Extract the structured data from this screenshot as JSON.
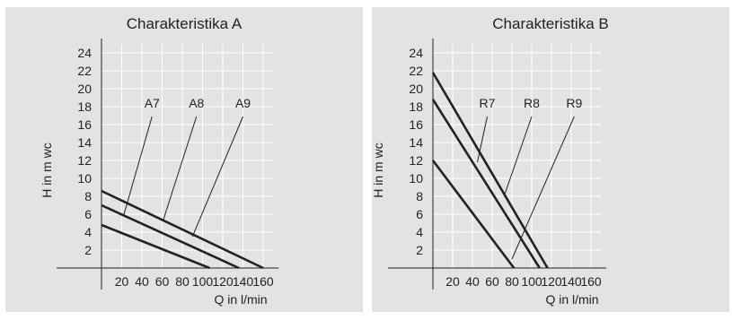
{
  "colors": {
    "panel_background": "#e3e3e3",
    "gridline": "#ffffff",
    "line": "#222222",
    "text": "#222222"
  },
  "chart_data": [
    {
      "type": "line",
      "title": "Charakteristika A",
      "xlabel": "Q in l/min",
      "ylabel": "H in m wc",
      "xlim": [
        0,
        170
      ],
      "ylim": [
        0,
        25
      ],
      "xticks": [
        20,
        40,
        60,
        80,
        100,
        120,
        140,
        160
      ],
      "yticks": [
        2,
        4,
        6,
        8,
        10,
        12,
        14,
        16,
        18,
        20,
        22,
        24
      ],
      "grid": true,
      "series": [
        {
          "name": "A7",
          "x": [
            0,
            107
          ],
          "y": [
            4.8,
            0
          ],
          "label_at": [
            50,
            17.5
          ],
          "leader_target": [
            22,
            5.9
          ]
        },
        {
          "name": "A8",
          "x": [
            0,
            136
          ],
          "y": [
            7,
            0
          ],
          "label_at": [
            94,
            17.5
          ],
          "leader_target": [
            61,
            5.3
          ]
        },
        {
          "name": "A9",
          "x": [
            0,
            160
          ],
          "y": [
            8.6,
            0
          ],
          "label_at": [
            140,
            17.5
          ],
          "leader_target": [
            90,
            3.5
          ]
        }
      ]
    },
    {
      "type": "line",
      "title": "Charakteristika B",
      "xlabel": "Q in l/min",
      "ylabel": "H in m wc",
      "xlim": [
        0,
        170
      ],
      "ylim": [
        0,
        25
      ],
      "xticks": [
        20,
        40,
        60,
        80,
        100,
        120,
        140,
        160
      ],
      "yticks": [
        2,
        4,
        6,
        8,
        10,
        12,
        14,
        16,
        18,
        20,
        22,
        24
      ],
      "grid": true,
      "series": [
        {
          "name": "R7",
          "x": [
            0,
            82
          ],
          "y": [
            12,
            0
          ],
          "label_at": [
            55,
            17.5
          ],
          "leader_target": [
            45,
            11.8
          ]
        },
        {
          "name": "R8",
          "x": [
            0,
            108
          ],
          "y": [
            18.8,
            0
          ],
          "label_at": [
            100,
            17.5
          ],
          "leader_target": [
            72,
            8
          ]
        },
        {
          "name": "R9",
          "x": [
            0,
            116
          ],
          "y": [
            21.8,
            0
          ],
          "label_at": [
            143,
            17.5
          ],
          "leader_target": [
            80,
            1
          ]
        }
      ]
    }
  ]
}
